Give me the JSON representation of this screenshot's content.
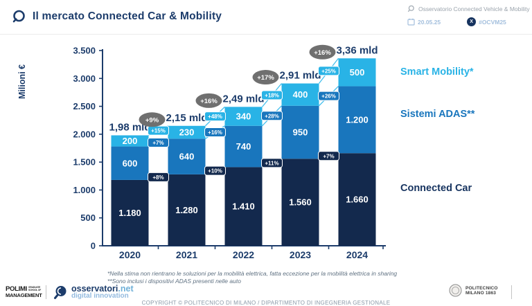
{
  "header": {
    "title": "Il mercato Connected Car & Mobility",
    "right": {
      "observatory": "Osservatorio Connected Vehicle & Mobility",
      "date": "20.05.25",
      "x_label": "X",
      "hashtag": "#OCVM25"
    }
  },
  "chart_data": {
    "type": "bar",
    "stacked": true,
    "title": "Il mercato Connected Car & Mobility",
    "ylabel": "Milioni €",
    "ylim": [
      0,
      3500
    ],
    "ytick_step": 500,
    "ytick_labels": [
      "0",
      "500",
      "1.000",
      "1.500",
      "2.000",
      "2.500",
      "3.000",
      "3.500"
    ],
    "categories": [
      "2020",
      "2021",
      "2022",
      "2023",
      "2024"
    ],
    "series": [
      {
        "name": "Connected Car",
        "color": "#13294d",
        "values": [
          1180,
          1280,
          1410,
          1560,
          1660
        ],
        "value_labels": [
          "1.180",
          "1.280",
          "1.410",
          "1.560",
          "1.660"
        ],
        "growth": [
          "+8%",
          "+10%",
          "+11%",
          "+7%"
        ]
      },
      {
        "name": "Sistemi ADAS**",
        "color": "#1976bd",
        "values": [
          600,
          640,
          740,
          950,
          1200
        ],
        "value_labels": [
          "600",
          "640",
          "740",
          "950",
          "1.200"
        ],
        "growth": [
          "+7%",
          "+16%",
          "+28%",
          "+26%"
        ]
      },
      {
        "name": "Smart Mobility*",
        "color": "#29b3e6",
        "values": [
          200,
          230,
          340,
          400,
          500
        ],
        "value_labels": [
          "200",
          "230",
          "340",
          "400",
          "500"
        ],
        "growth": [
          "+15%",
          "+48%",
          "+18%",
          "+25%"
        ]
      }
    ],
    "totals": [
      "1,98 mld",
      "2,15 mld",
      "2,49 mld",
      "2,91 mld",
      "3,36 mld"
    ],
    "total_growth": [
      "+9%",
      "+16%",
      "+17%",
      "+16%"
    ],
    "total_growth_color": "#6f6f6f",
    "legend_position": "right"
  },
  "legend": [
    {
      "label": "Smart Mobility*",
      "color": "#29b3e6"
    },
    {
      "label": "Sistemi ADAS**",
      "color": "#1976bd"
    },
    {
      "label": "Connected Car",
      "color": "#16335f"
    }
  ],
  "footnotes": [
    "*Nella stima non rientrano le soluzioni per la mobilità elettrica, fatta eccezione per la mobilità elettrica in sharing",
    "**Sono inclusi i dispositivi ADAS presenti nelle auto"
  ],
  "footer": {
    "polimi": {
      "line1": "POLIMI",
      "sub1": "GRADUATE",
      "sub2": "SCHOOL OF",
      "line2": "MANAGEMENT"
    },
    "osservatori": {
      "name": "osservatori",
      "tld": ".net",
      "tagline": "digital innovation"
    },
    "politecnico": {
      "line1": "POLITECNICO",
      "line2": "MILANO 1863"
    },
    "copyright": "COPYRIGHT © POLITECNICO DI MILANO / DIPARTIMENTO DI INGEGNERIA GESTIONALE"
  }
}
